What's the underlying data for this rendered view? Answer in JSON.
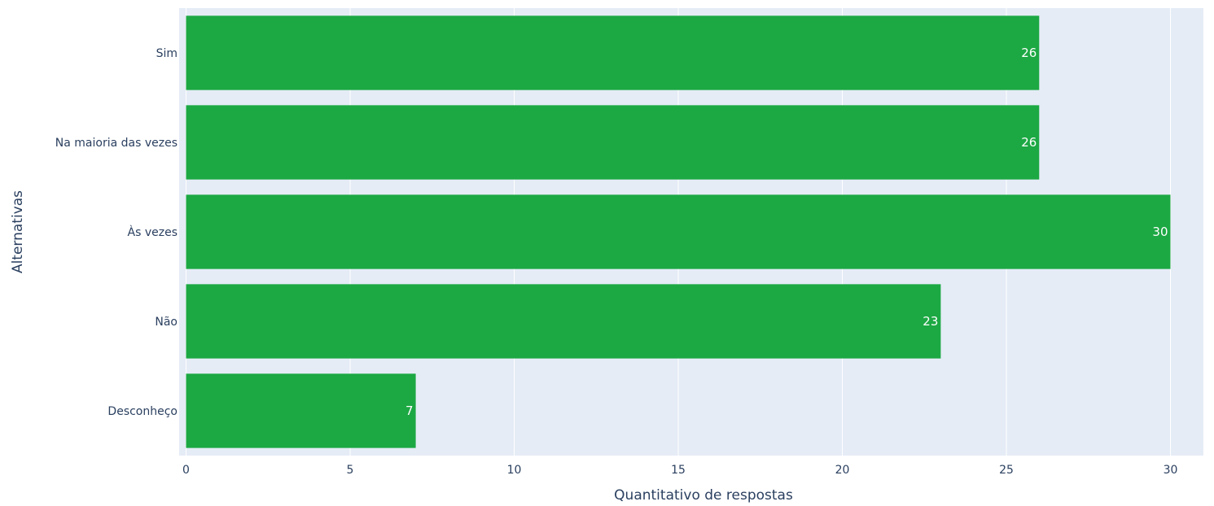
{
  "chart_data": {
    "type": "bar",
    "orientation": "horizontal",
    "categories": [
      "Sim",
      "Na maioria das vezes",
      "Às vezes",
      "Não",
      "Desconheço"
    ],
    "values": [
      26,
      26,
      30,
      23,
      7
    ],
    "data_labels": [
      "26",
      "26",
      "30",
      "23",
      "7"
    ],
    "xlabel": "Quantitativo de respostas",
    "ylabel": "Alternativas",
    "xlim": [
      0,
      31
    ],
    "xticks": [
      0,
      5,
      10,
      15,
      20,
      25,
      30
    ],
    "grid": true,
    "colors": {
      "bar": "#1ca843",
      "plot_bg": "#e5ecf6",
      "grid": "#ffffff",
      "text": "#2a3f5f",
      "data_label": "#ffffff"
    }
  }
}
